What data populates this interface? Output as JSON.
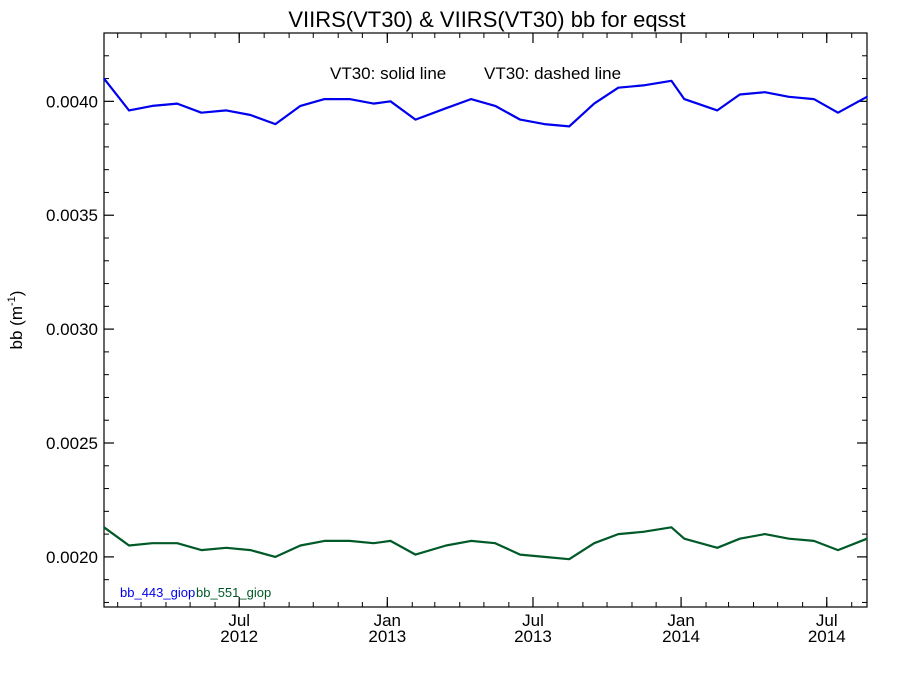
{
  "chart_data": {
    "type": "line",
    "title": "VIIRS(VT30) & VIIRS(VT30)  bb for eqsst",
    "annotation_1": "VT30: solid line",
    "annotation_2": "VT30: dashed line",
    "ylabel": "bb (m",
    "ylabel_superscript": "-1",
    "ylabel_close": ")",
    "xlim": [
      "2012-01-15",
      "2014-08-20"
    ],
    "ylim": [
      0.00178,
      0.0043
    ],
    "yticks": [
      0.002,
      0.0025,
      0.003,
      0.0035,
      0.004
    ],
    "ytick_labels": [
      "0.0020",
      "0.0025",
      "0.0030",
      "0.0035",
      "0.0040"
    ],
    "xticks": [
      {
        "date": "2012-07-01",
        "month": "Jul",
        "year": "2012"
      },
      {
        "date": "2013-01-01",
        "month": "Jan",
        "year": "2013"
      },
      {
        "date": "2013-07-01",
        "month": "Jul",
        "year": "2013"
      },
      {
        "date": "2014-01-01",
        "month": "Jan",
        "year": "2014"
      },
      {
        "date": "2014-07-01",
        "month": "Jul",
        "year": "2014"
      }
    ],
    "grid": false,
    "legend_position": "bottom-left",
    "x": [
      "2012-01-15",
      "2012-02-15",
      "2012-03-15",
      "2012-04-15",
      "2012-05-15",
      "2012-06-15",
      "2012-07-15",
      "2012-08-15",
      "2012-09-15",
      "2012-10-15",
      "2012-11-15",
      "2012-12-15",
      "2013-01-05",
      "2013-02-05",
      "2013-03-15",
      "2013-04-15",
      "2013-05-15",
      "2013-06-15",
      "2013-07-15",
      "2013-08-15",
      "2013-09-15",
      "2013-10-15",
      "2013-11-15",
      "2013-12-20",
      "2014-01-05",
      "2014-02-15",
      "2014-03-15",
      "2014-04-15",
      "2014-05-15",
      "2014-06-15",
      "2014-07-15",
      "2014-08-20"
    ],
    "series": [
      {
        "name": "bb_443_giop",
        "color": "#0000ee",
        "values": [
          0.0041,
          0.00396,
          0.00398,
          0.00399,
          0.00395,
          0.00396,
          0.00394,
          0.0039,
          0.00398,
          0.00401,
          0.00401,
          0.00399,
          0.004,
          0.00392,
          0.00397,
          0.00401,
          0.00398,
          0.00392,
          0.0039,
          0.00389,
          0.00399,
          0.00406,
          0.00407,
          0.00409,
          0.00401,
          0.00396,
          0.00403,
          0.00404,
          0.00402,
          0.00401,
          0.00395,
          0.00402
        ]
      },
      {
        "name": "bb_551_giop",
        "color": "#005a28",
        "values": [
          0.00213,
          0.00205,
          0.00206,
          0.00206,
          0.00203,
          0.00204,
          0.00203,
          0.002,
          0.00205,
          0.00207,
          0.00207,
          0.00206,
          0.00207,
          0.00201,
          0.00205,
          0.00207,
          0.00206,
          0.00201,
          0.002,
          0.00199,
          0.00206,
          0.0021,
          0.00211,
          0.00213,
          0.00208,
          0.00204,
          0.00208,
          0.0021,
          0.00208,
          0.00207,
          0.00203,
          0.00208
        ]
      }
    ]
  }
}
